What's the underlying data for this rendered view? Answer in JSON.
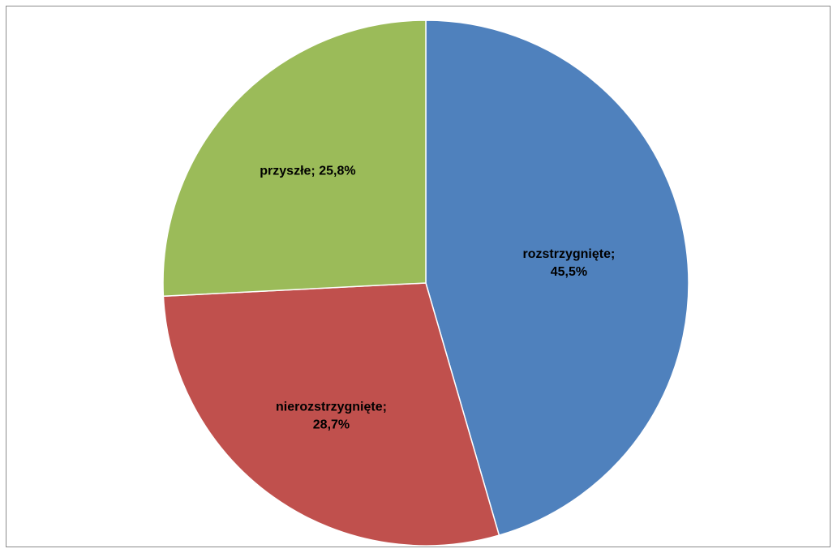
{
  "chart_data": {
    "type": "pie",
    "title": "",
    "slices": [
      {
        "name": "rozstrzygnięte",
        "value": 45.5,
        "label_line1": "rozstrzygnięte;",
        "label_line2": "45,5%",
        "color": "#4F81BD"
      },
      {
        "name": "nierozstrzygnięte",
        "value": 28.7,
        "label_line1": "nierozstrzygnięte;",
        "label_line2": "28,7%",
        "color": "#C0504D"
      },
      {
        "name": "przyszłe",
        "value": 25.8,
        "label_line1": "przyszłe; 25,8%",
        "label_line2": "",
        "color": "#9BBB59"
      }
    ],
    "start": "12 o'clock",
    "direction": "clockwise",
    "legend": "none",
    "data_labels": "inside"
  }
}
